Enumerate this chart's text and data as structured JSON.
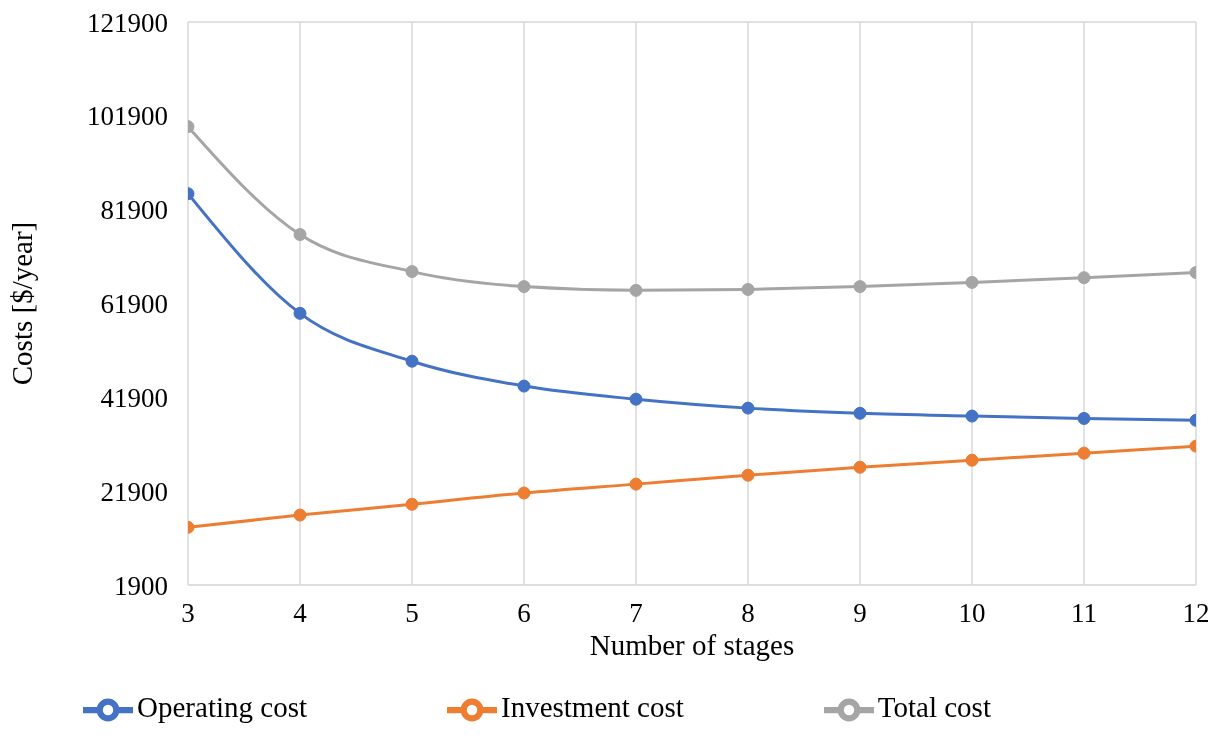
{
  "chart_data": {
    "type": "line",
    "xlabel": "Number of stages",
    "ylabel": "Costs [$/year]",
    "x": [
      3,
      4,
      5,
      6,
      7,
      8,
      9,
      10,
      11,
      12
    ],
    "series": [
      {
        "name": "Operating cost",
        "color": "#4472c4",
        "values": [
          85300,
          59800,
          49600,
          44300,
          41500,
          39600,
          38500,
          37900,
          37400,
          37000
        ]
      },
      {
        "name": "Investment cost",
        "color": "#ed7d31",
        "values": [
          14200,
          16800,
          19100,
          21500,
          23400,
          25300,
          27000,
          28500,
          30000,
          31500
        ]
      },
      {
        "name": "Total cost",
        "color": "#a5a5a5",
        "values": [
          99600,
          76600,
          68700,
          65500,
          64700,
          64900,
          65500,
          66400,
          67400,
          68500
        ]
      }
    ],
    "xlim": [
      3,
      12
    ],
    "xticks": [
      3,
      4,
      5,
      6,
      7,
      8,
      9,
      10,
      11,
      12
    ],
    "ylim": [
      1900,
      121900
    ],
    "yticks": [
      1900,
      21900,
      41900,
      61900,
      81900,
      101900,
      121900
    ],
    "grid": true,
    "legend": "bottom",
    "marker": "circle",
    "line_style": "solid"
  }
}
